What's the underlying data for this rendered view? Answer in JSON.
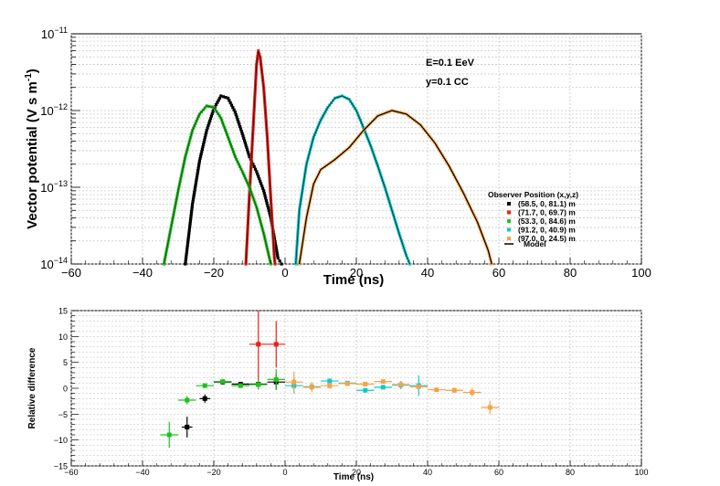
{
  "chart_data": [
    {
      "type": "line",
      "panel": "top",
      "title": "",
      "xlabel": "Time (ns)",
      "ylabel": "Vector potential (V s m",
      "ylabel_sup": "-1",
      "ylabel_close": ")",
      "xlim": [
        -60,
        100
      ],
      "ylim": [
        1e-14,
        1e-11
      ],
      "yscale": "log",
      "grid": true,
      "x_ticks": [
        "−60",
        "−40",
        "−20",
        "0",
        "20",
        "40",
        "60",
        "80",
        "100"
      ],
      "y_ticks": [
        {
          "base": "10",
          "exp": "−11"
        },
        {
          "base": "10",
          "exp": "−12"
        },
        {
          "base": "10",
          "exp": "−13"
        },
        {
          "base": "10",
          "exp": "−14"
        }
      ],
      "annotations": [
        "E=0.1 EeV",
        "y=0.1 CC"
      ],
      "legend": {
        "title": "Observer Position (x,y,z)",
        "position": "right",
        "entries": [
          {
            "label": "(58.5, 0, 81.1) m",
            "color": "#000000"
          },
          {
            "label": "(71.7, 0, 69.7) m",
            "color": "#e8211a"
          },
          {
            "label": "(53.3, 0, 84.6) m",
            "color": "#1fc21f"
          },
          {
            "label": "(91.2, 0, 40.9) m",
            "color": "#14c8c8"
          },
          {
            "label": "(97.0, 0, 24.5) m",
            "color": "#f5a34a"
          }
        ],
        "model_label": "Model"
      },
      "series": [
        {
          "name": "(58.5, 0, 81.1) m",
          "color": "#000000",
          "model_color": "#000000",
          "points": [
            [
              -28,
              1e-14
            ],
            [
              -26,
              6e-14
            ],
            [
              -24,
              2.2e-13
            ],
            [
              -22,
              5.5e-13
            ],
            [
              -20,
              1.05e-12
            ],
            [
              -18,
              1.55e-12
            ],
            [
              -16,
              1.45e-12
            ],
            [
              -14,
              9.5e-13
            ],
            [
              -12,
              5e-13
            ],
            [
              -10,
              2.5e-13
            ],
            [
              -8,
              1.6e-13
            ],
            [
              -6,
              9e-14
            ],
            [
              -4,
              4e-14
            ],
            [
              -2,
              1.2e-14
            ],
            [
              -1,
              1e-14
            ]
          ]
        },
        {
          "name": "(71.7, 0, 69.7) m",
          "color": "#e8211a",
          "model_color": "#5a1010",
          "points": [
            [
              -11,
              1e-14
            ],
            [
              -10,
              8e-14
            ],
            [
              -9,
              5.5e-13
            ],
            [
              -8,
              4e-12
            ],
            [
              -7.5,
              6e-12
            ],
            [
              -7,
              5e-12
            ],
            [
              -6,
              2e-12
            ],
            [
              -5,
              4.5e-13
            ],
            [
              -4,
              7e-14
            ],
            [
              -3,
              1.2e-14
            ],
            [
              -2.8,
              1e-14
            ]
          ]
        },
        {
          "name": "(53.3, 0, 84.6) m",
          "color": "#1fc21f",
          "model_color": "#1a5a1a",
          "points": [
            [
              -34,
              1e-14
            ],
            [
              -32,
              3e-14
            ],
            [
              -30,
              9e-14
            ],
            [
              -28,
              2.5e-13
            ],
            [
              -26,
              5.5e-13
            ],
            [
              -24,
              9e-13
            ],
            [
              -22,
              1.15e-12
            ],
            [
              -20,
              1.1e-12
            ],
            [
              -18,
              8e-13
            ],
            [
              -16,
              4.5e-13
            ],
            [
              -14,
              2.5e-13
            ],
            [
              -12,
              1.6e-13
            ],
            [
              -10,
              1e-13
            ],
            [
              -8,
              5.5e-14
            ],
            [
              -6,
              2.5e-14
            ],
            [
              -4,
              1e-14
            ]
          ]
        },
        {
          "name": "(91.2, 0, 40.9) m",
          "color": "#14c8c8",
          "model_color": "#0d4a4a",
          "points": [
            [
              3,
              1e-14
            ],
            [
              4,
              5e-14
            ],
            [
              6,
              2e-13
            ],
            [
              8,
              4.5e-13
            ],
            [
              10,
              7.5e-13
            ],
            [
              12,
              1.1e-12
            ],
            [
              14,
              1.45e-12
            ],
            [
              16,
              1.55e-12
            ],
            [
              18,
              1.4e-12
            ],
            [
              20,
              1e-12
            ],
            [
              22,
              6e-13
            ],
            [
              24,
              3.5e-13
            ],
            [
              26,
              1.9e-13
            ],
            [
              28,
              1e-13
            ],
            [
              30,
              5e-14
            ],
            [
              32,
              2.5e-14
            ],
            [
              34,
              1.3e-14
            ],
            [
              35,
              1e-14
            ]
          ]
        },
        {
          "name": "(97.0, 0, 24.5) m",
          "color": "#f5a34a",
          "model_color": "#000000",
          "points": [
            [
              4,
              1e-14
            ],
            [
              6,
              4e-14
            ],
            [
              8,
              1.1e-13
            ],
            [
              10,
              1.7e-13
            ],
            [
              14,
              2.3e-13
            ],
            [
              18,
              3.3e-13
            ],
            [
              22,
              5.5e-13
            ],
            [
              26,
              8.5e-13
            ],
            [
              30,
              1e-12
            ],
            [
              34,
              9e-13
            ],
            [
              38,
              6.5e-13
            ],
            [
              42,
              3.8e-13
            ],
            [
              46,
              1.9e-13
            ],
            [
              50,
              8.5e-14
            ],
            [
              54,
              3.5e-14
            ],
            [
              57,
              1.5e-14
            ],
            [
              58,
              1e-14
            ]
          ]
        }
      ]
    },
    {
      "type": "scatter",
      "panel": "bottom",
      "title": "",
      "xlabel": "Time (ns)",
      "ylabel": "Relative difference",
      "xlim": [
        -60,
        100
      ],
      "ylim": [
        -15,
        15
      ],
      "grid": true,
      "x_ticks": [
        "−60",
        "−40",
        "−20",
        "0",
        "20",
        "40",
        "60",
        "80",
        "100"
      ],
      "y_ticks": [
        "15",
        "10",
        "5",
        "0",
        "−5",
        "−10",
        "−15"
      ],
      "series": [
        {
          "name": "(58.5, 0, 81.1) m",
          "color": "#000000",
          "points": [
            [
              -27.5,
              -7.5,
              1.5,
              2
            ],
            [
              -22.5,
              -2,
              1.5,
              0.8
            ],
            [
              -17.5,
              1.2,
              2.5,
              0.5
            ],
            [
              -12.5,
              0.8,
              2.5,
              0.4
            ],
            [
              -7.5,
              0.8,
              2.5,
              0.5
            ],
            [
              -2.5,
              1.2,
              2.5,
              1.5
            ]
          ]
        },
        {
          "name": "(71.7, 0, 69.7) m",
          "color": "#e8211a",
          "points": [
            [
              -7.5,
              8.5,
              2.5,
              7
            ],
            [
              -2.5,
              8.5,
              2.5,
              4.5
            ]
          ]
        },
        {
          "name": "(53.3, 0, 84.6) m",
          "color": "#1fc21f",
          "points": [
            [
              -32.5,
              -9,
              2.5,
              2.5
            ],
            [
              -27.5,
              -2.3,
              2.5,
              0.8
            ],
            [
              -22.5,
              0.5,
              2.5,
              0.4
            ],
            [
              -17.5,
              1.3,
              2.5,
              0.4
            ],
            [
              -12.5,
              0.5,
              2.5,
              0.4
            ],
            [
              -7.5,
              0.7,
              2.5,
              1
            ],
            [
              -2.5,
              1.7,
              2.5,
              2
            ]
          ]
        },
        {
          "name": "(91.2, 0, 40.9) m",
          "color": "#14c8c8",
          "points": [
            [
              2.5,
              0.5,
              2.5,
              1.5
            ],
            [
              7.5,
              0.3,
              2.5,
              0.7
            ],
            [
              12.5,
              1.4,
              2.5,
              0.5
            ],
            [
              17.5,
              1,
              2.5,
              0.4
            ],
            [
              22.5,
              -0.4,
              2.5,
              0.4
            ],
            [
              27.5,
              0.2,
              2.5,
              0.4
            ],
            [
              32.5,
              0.6,
              2.5,
              0.8
            ],
            [
              37.5,
              0.5,
              2.5,
              2
            ]
          ]
        },
        {
          "name": "(97.0, 0, 24.5) m",
          "color": "#f5a34a",
          "points": [
            [
              2.5,
              1.2,
              2.5,
              2
            ],
            [
              7.5,
              0.2,
              2.5,
              1
            ],
            [
              12.5,
              0.5,
              2.5,
              0.6
            ],
            [
              17.5,
              0.9,
              2.5,
              0.4
            ],
            [
              22.5,
              0.8,
              2.5,
              0.3
            ],
            [
              27.5,
              1.3,
              2.5,
              0.3
            ],
            [
              32.5,
              0.7,
              2.5,
              0.3
            ],
            [
              37.5,
              0.3,
              2.5,
              0.4
            ],
            [
              42.5,
              -0.3,
              2.5,
              0.4
            ],
            [
              47.5,
              -0.4,
              2.5,
              0.5
            ],
            [
              52.5,
              -0.8,
              2.5,
              0.8
            ],
            [
              57.5,
              -3.7,
              2.5,
              1.3
            ]
          ]
        }
      ]
    }
  ]
}
